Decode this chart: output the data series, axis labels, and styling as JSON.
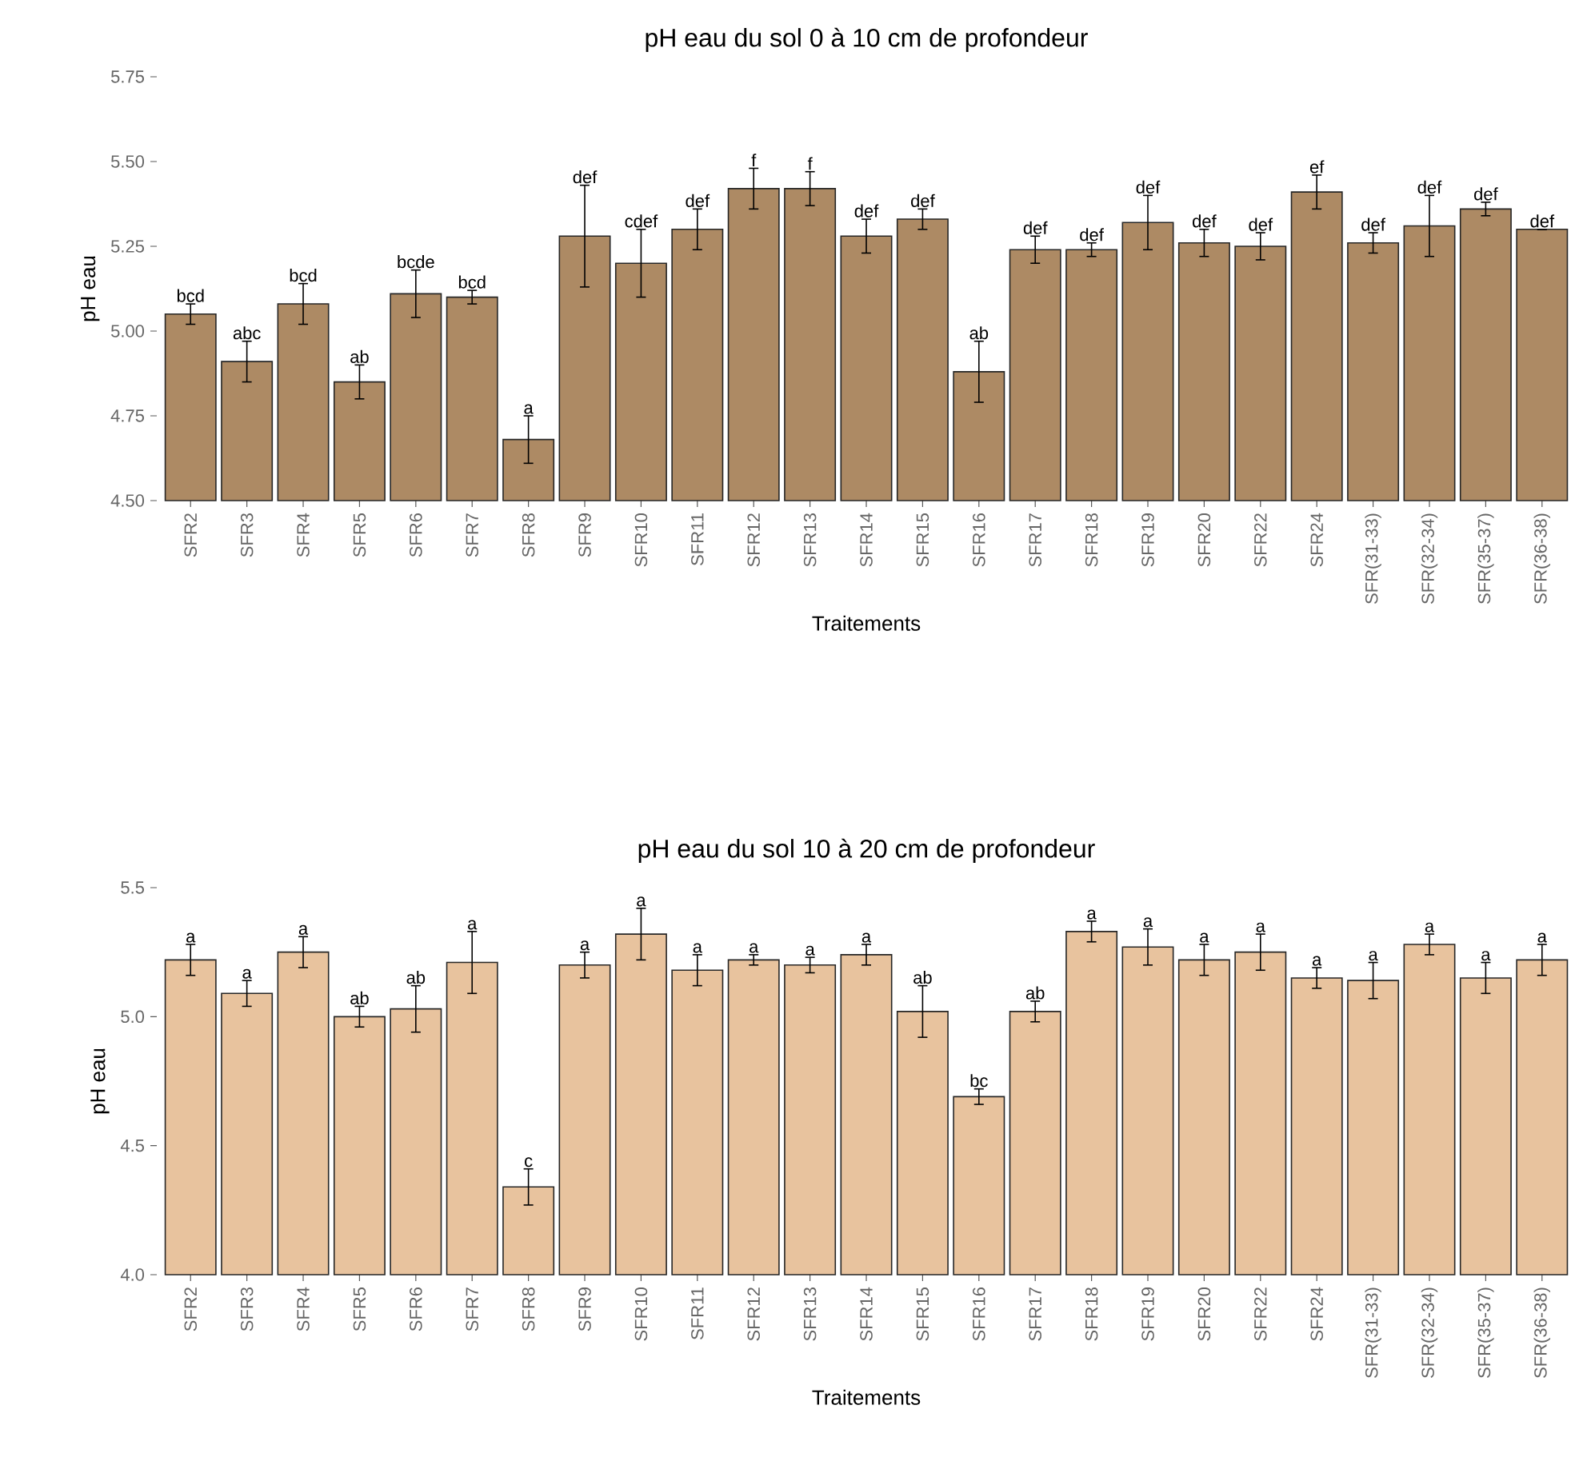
{
  "chart_data": [
    {
      "type": "bar",
      "title": "pH eau du sol 0 à 10 cm de profondeur",
      "xlabel": "Traitements",
      "ylabel": "pH eau",
      "categories": [
        "SFR2",
        "SFR3",
        "SFR4",
        "SFR5",
        "SFR6",
        "SFR7",
        "SFR8",
        "SFR9",
        "SFR10",
        "SFR11",
        "SFR12",
        "SFR13",
        "SFR14",
        "SFR15",
        "SFR16",
        "SFR17",
        "SFR18",
        "SFR19",
        "SFR20",
        "SFR22",
        "SFR24",
        "SFR(31-33)",
        "SFR(32-34)",
        "SFR(35-37)",
        "SFR(36-38)"
      ],
      "values": [
        5.05,
        4.91,
        5.08,
        4.85,
        5.11,
        5.1,
        4.68,
        5.28,
        5.2,
        5.3,
        5.42,
        5.42,
        5.28,
        5.33,
        4.88,
        5.24,
        5.24,
        5.32,
        5.26,
        5.25,
        5.41,
        5.26,
        5.31,
        5.36,
        5.3
      ],
      "errors": [
        0.03,
        0.06,
        0.06,
        0.05,
        0.07,
        0.02,
        0.07,
        0.15,
        0.1,
        0.06,
        0.06,
        0.05,
        0.05,
        0.03,
        0.09,
        0.04,
        0.02,
        0.08,
        0.04,
        0.04,
        0.05,
        0.03,
        0.09,
        0.02,
        0
      ],
      "value_labels": [
        "bcd",
        "abc",
        "bcd",
        "ab",
        "bcde",
        "bcd",
        "a",
        "def",
        "cdef",
        "def",
        "f",
        "f",
        "def",
        "def",
        "ab",
        "def",
        "def",
        "def",
        "def",
        "def",
        "ef",
        "def",
        "def",
        "def",
        "def"
      ],
      "color": "#ad8a64",
      "ylim": [
        4.5,
        5.75
      ],
      "yticks": [
        {
          "value": 4.5,
          "label": "4.50"
        },
        {
          "value": 4.75,
          "label": "4.75"
        },
        {
          "value": 5.0,
          "label": "5.00"
        },
        {
          "value": 5.25,
          "label": "5.25"
        },
        {
          "value": 5.5,
          "label": "5.50"
        },
        {
          "value": 5.75,
          "label": "5.75"
        }
      ]
    },
    {
      "type": "bar",
      "title": "pH eau du sol 10 à 20 cm de profondeur",
      "xlabel": "Traitements",
      "ylabel": "pH eau",
      "categories": [
        "SFR2",
        "SFR3",
        "SFR4",
        "SFR5",
        "SFR6",
        "SFR7",
        "SFR8",
        "SFR9",
        "SFR10",
        "SFR11",
        "SFR12",
        "SFR13",
        "SFR14",
        "SFR15",
        "SFR16",
        "SFR17",
        "SFR18",
        "SFR19",
        "SFR20",
        "SFR22",
        "SFR24",
        "SFR(31-33)",
        "SFR(32-34)",
        "SFR(35-37)",
        "SFR(36-38)"
      ],
      "values": [
        5.22,
        5.09,
        5.25,
        5.0,
        5.03,
        5.21,
        4.34,
        5.2,
        5.32,
        5.18,
        5.22,
        5.2,
        5.24,
        5.02,
        4.69,
        5.02,
        5.33,
        5.27,
        5.22,
        5.25,
        5.15,
        5.14,
        5.28,
        5.15,
        5.22
      ],
      "errors": [
        0.06,
        0.05,
        0.06,
        0.04,
        0.09,
        0.12,
        0.07,
        0.05,
        0.1,
        0.06,
        0.02,
        0.03,
        0.04,
        0.1,
        0.03,
        0.04,
        0.04,
        0.07,
        0.06,
        0.07,
        0.04,
        0.07,
        0.04,
        0.06,
        0.06
      ],
      "value_labels": [
        "a",
        "a",
        "a",
        "ab",
        "ab",
        "a",
        "c",
        "a",
        "a",
        "a",
        "a",
        "a",
        "a",
        "ab",
        "bc",
        "ab",
        "a",
        "a",
        "a",
        "a",
        "a",
        "a",
        "a",
        "a",
        "a"
      ],
      "color": "#e8c39e",
      "ylim": [
        4.0,
        5.5
      ],
      "yticks": [
        {
          "value": 4.0,
          "label": "4.0"
        },
        {
          "value": 4.5,
          "label": "4.5"
        },
        {
          "value": 5.0,
          "label": "5.0"
        },
        {
          "value": 5.5,
          "label": "5.5"
        }
      ]
    }
  ]
}
